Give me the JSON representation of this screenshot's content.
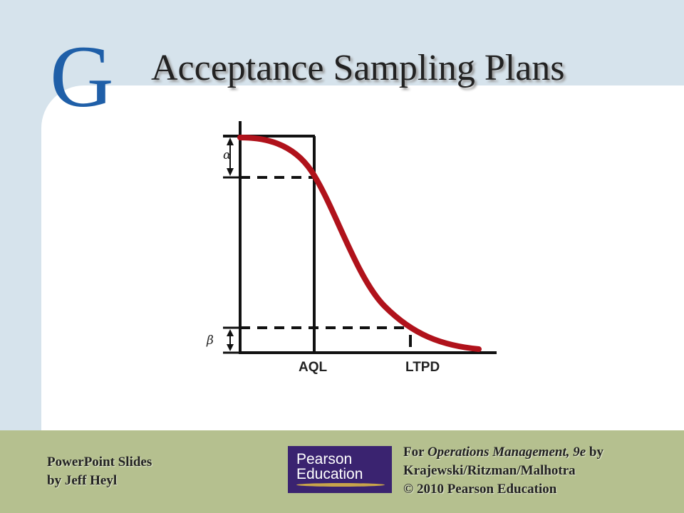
{
  "slide": {
    "chapter_letter": "G",
    "title": "Acceptance Sampling Plans"
  },
  "diagram": {
    "alpha_symbol": "α",
    "beta_symbol": "β",
    "aql_label": "AQL",
    "ltpd_label": "LTPD",
    "curve_color": "#b0121b"
  },
  "footer": {
    "left_line1": "PowerPoint Slides",
    "left_line2": "by Jeff Heyl",
    "logo_line1": "Pearson",
    "logo_line2": "Education",
    "right_for": "For ",
    "right_book": "Operations Management, 9e",
    "right_by": " by",
    "right_authors": "Krajewski/Ritzman/Malhotra",
    "right_copyright": "© 2010 Pearson Education"
  }
}
